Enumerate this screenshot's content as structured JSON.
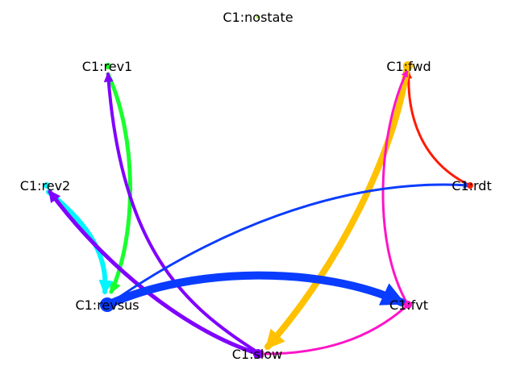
{
  "diagram": {
    "nodes": [
      {
        "id": "nostate",
        "label": "C1:nostate",
        "color": "#a6f21a"
      },
      {
        "id": "rev1",
        "label": "C1:rev1",
        "color": "#19ff2e"
      },
      {
        "id": "fwd",
        "label": "C1:fwd",
        "color": "#ffc100"
      },
      {
        "id": "rev2",
        "label": "C1:rev2",
        "color": "#00f5ff"
      },
      {
        "id": "rdt",
        "label": "C1:rdt",
        "color": "#ff1a00"
      },
      {
        "id": "revsus",
        "label": "C1:revsus",
        "color": "#0a3cff"
      },
      {
        "id": "fvt",
        "label": "C1:fvt",
        "color": "#ff14c8"
      },
      {
        "id": "slow",
        "label": "C1:slow",
        "color": "#8000ff"
      }
    ],
    "edges": [
      {
        "from": "rev1",
        "to": "revsus",
        "color": "#19ff2e"
      },
      {
        "from": "slow",
        "to": "rev1",
        "color": "#8000ff"
      },
      {
        "from": "rev2",
        "to": "revsus",
        "color": "#00f5ff"
      },
      {
        "from": "slow",
        "to": "rev2",
        "color": "#8000ff"
      },
      {
        "from": "rdt",
        "to": "fwd",
        "color": "#ff1a00"
      },
      {
        "from": "fwd",
        "to": "slow",
        "color": "#ffc100"
      },
      {
        "from": "fvt",
        "to": "fwd",
        "color": "#ff14c8"
      },
      {
        "from": "fvt",
        "to": "slow",
        "color": "#ff14c8"
      },
      {
        "from": "revsus",
        "to": "rdt",
        "color": "#0a3cff"
      },
      {
        "from": "revsus",
        "to": "fvt",
        "color": "#0a3cff"
      }
    ]
  }
}
